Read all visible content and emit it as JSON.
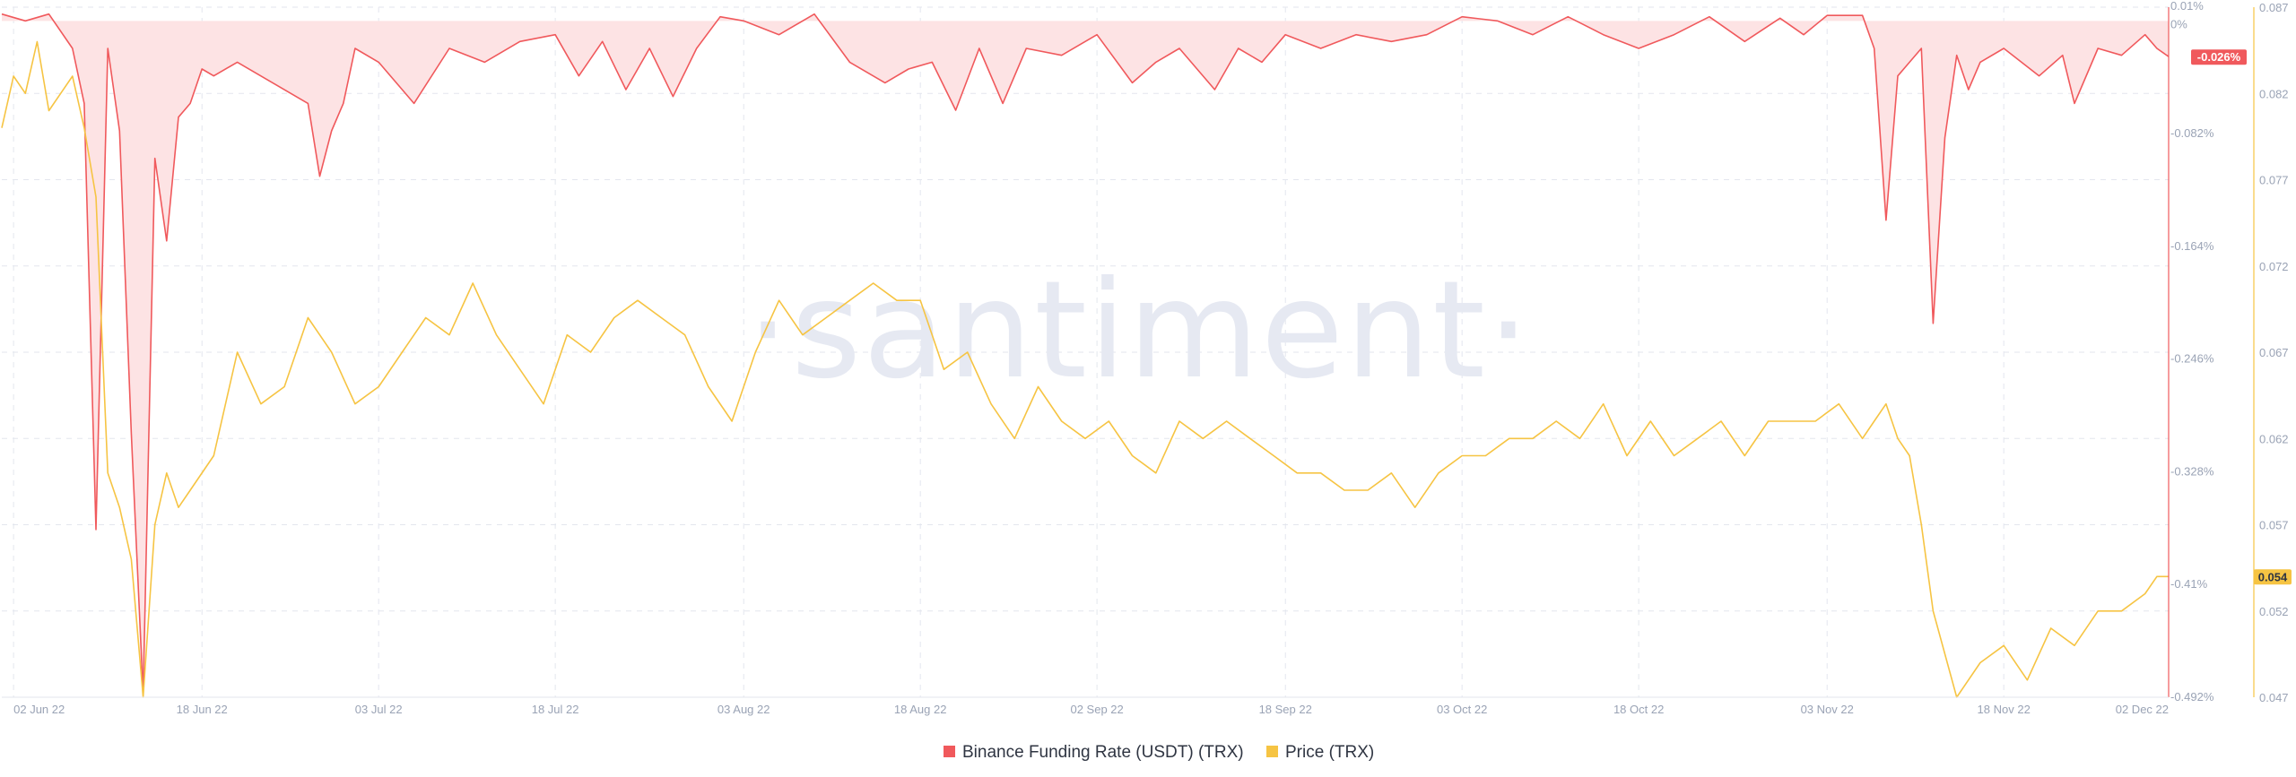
{
  "watermark": "·santiment·",
  "colors": {
    "funding": "#f0595c",
    "funding_fill": "#fde3e4",
    "price": "#f6c443",
    "grid": "#e3e6ee",
    "tick": "#9aa3b5"
  },
  "chart_data": {
    "type": "line",
    "x_range": [
      "2022-06-01",
      "2022-12-02"
    ],
    "x_ticks": [
      "02 Jun 22",
      "18 Jun 22",
      "03 Jul 22",
      "18 Jul 22",
      "03 Aug 22",
      "18 Aug 22",
      "02 Sep 22",
      "18 Sep 22",
      "03 Oct 22",
      "18 Oct 22",
      "03 Nov 22",
      "18 Nov 22",
      "02 Dec 22"
    ],
    "funding_axis": {
      "side": "right-inner",
      "range": [
        -0.492,
        0.01
      ],
      "ticks": [
        "0.01%",
        "0%",
        "-0.082%",
        "-0.164%",
        "-0.246%",
        "-0.328%",
        "-0.41%",
        "-0.492%"
      ],
      "tick_values": [
        0.01,
        0,
        -0.082,
        -0.164,
        -0.246,
        -0.328,
        -0.41,
        -0.492
      ]
    },
    "price_axis": {
      "side": "right-outer",
      "range": [
        0.047,
        0.087
      ],
      "ticks": [
        "0.087",
        "0.082",
        "0.077",
        "0.072",
        "0.067",
        "0.062",
        "0.057",
        "0.052",
        "0.047"
      ],
      "tick_values": [
        0.087,
        0.082,
        0.077,
        0.072,
        0.067,
        0.062,
        0.057,
        0.052,
        0.047
      ]
    },
    "last_values": {
      "funding": "-0.026%",
      "price": "0.054"
    },
    "legend_position": "bottom-center",
    "grid": true,
    "series": [
      {
        "name": "Binance Funding Rate (USDT) (TRX)",
        "axis": "funding",
        "x": [
          "2022-06-01",
          "2022-06-03",
          "2022-06-05",
          "2022-06-07",
          "2022-06-08",
          "2022-06-09",
          "2022-06-10",
          "2022-06-11",
          "2022-06-12",
          "2022-06-13",
          "2022-06-14",
          "2022-06-15",
          "2022-06-16",
          "2022-06-17",
          "2022-06-18",
          "2022-06-19",
          "2022-06-21",
          "2022-06-24",
          "2022-06-27",
          "2022-06-28",
          "2022-06-29",
          "2022-06-30",
          "2022-07-01",
          "2022-07-03",
          "2022-07-06",
          "2022-07-09",
          "2022-07-12",
          "2022-07-15",
          "2022-07-18",
          "2022-07-20",
          "2022-07-22",
          "2022-07-24",
          "2022-07-26",
          "2022-07-28",
          "2022-07-30",
          "2022-08-01",
          "2022-08-03",
          "2022-08-06",
          "2022-08-09",
          "2022-08-12",
          "2022-08-15",
          "2022-08-17",
          "2022-08-19",
          "2022-08-21",
          "2022-08-23",
          "2022-08-25",
          "2022-08-27",
          "2022-08-30",
          "2022-09-02",
          "2022-09-05",
          "2022-09-07",
          "2022-09-09",
          "2022-09-12",
          "2022-09-14",
          "2022-09-16",
          "2022-09-18",
          "2022-09-21",
          "2022-09-24",
          "2022-09-27",
          "2022-09-30",
          "2022-10-03",
          "2022-10-06",
          "2022-10-09",
          "2022-10-12",
          "2022-10-15",
          "2022-10-18",
          "2022-10-21",
          "2022-10-24",
          "2022-10-27",
          "2022-10-30",
          "2022-11-01",
          "2022-11-03",
          "2022-11-06",
          "2022-11-07",
          "2022-11-08",
          "2022-11-09",
          "2022-11-10",
          "2022-11-11",
          "2022-11-12",
          "2022-11-13",
          "2022-11-14",
          "2022-11-15",
          "2022-11-16",
          "2022-11-18",
          "2022-11-21",
          "2022-11-23",
          "2022-11-24",
          "2022-11-26",
          "2022-11-28",
          "2022-11-30",
          "2022-12-01",
          "2022-12-02"
        ],
        "values": [
          0.005,
          0.0,
          0.005,
          -0.02,
          -0.06,
          -0.37,
          -0.02,
          -0.08,
          -0.3,
          -0.49,
          -0.1,
          -0.16,
          -0.07,
          -0.06,
          -0.035,
          -0.04,
          -0.03,
          -0.045,
          -0.06,
          -0.113,
          -0.08,
          -0.06,
          -0.02,
          -0.03,
          -0.06,
          -0.02,
          -0.03,
          -0.015,
          -0.01,
          -0.04,
          -0.015,
          -0.05,
          -0.02,
          -0.055,
          -0.02,
          0.003,
          0.0,
          -0.01,
          0.005,
          -0.03,
          -0.045,
          -0.035,
          -0.03,
          -0.065,
          -0.02,
          -0.06,
          -0.02,
          -0.025,
          -0.01,
          -0.045,
          -0.03,
          -0.02,
          -0.05,
          -0.02,
          -0.03,
          -0.01,
          -0.02,
          -0.01,
          -0.015,
          -0.01,
          0.003,
          0.0,
          -0.01,
          0.003,
          -0.01,
          -0.02,
          -0.01,
          0.003,
          -0.015,
          0.002,
          -0.01,
          0.004,
          0.004,
          -0.02,
          -0.145,
          -0.04,
          -0.03,
          -0.02,
          -0.22,
          -0.085,
          -0.025,
          -0.05,
          -0.03,
          -0.02,
          -0.04,
          -0.025,
          -0.06,
          -0.02,
          -0.025,
          -0.01,
          -0.02,
          -0.026
        ]
      },
      {
        "name": "Price (TRX)",
        "axis": "price",
        "x": [
          "2022-06-01",
          "2022-06-02",
          "2022-06-03",
          "2022-06-04",
          "2022-06-05",
          "2022-06-06",
          "2022-06-07",
          "2022-06-08",
          "2022-06-09",
          "2022-06-10",
          "2022-06-11",
          "2022-06-12",
          "2022-06-13",
          "2022-06-14",
          "2022-06-15",
          "2022-06-16",
          "2022-06-17",
          "2022-06-19",
          "2022-06-21",
          "2022-06-23",
          "2022-06-25",
          "2022-06-27",
          "2022-06-29",
          "2022-07-01",
          "2022-07-03",
          "2022-07-05",
          "2022-07-07",
          "2022-07-09",
          "2022-07-11",
          "2022-07-13",
          "2022-07-15",
          "2022-07-17",
          "2022-07-19",
          "2022-07-21",
          "2022-07-23",
          "2022-07-25",
          "2022-07-27",
          "2022-07-29",
          "2022-07-31",
          "2022-08-02",
          "2022-08-04",
          "2022-08-06",
          "2022-08-08",
          "2022-08-10",
          "2022-08-12",
          "2022-08-14",
          "2022-08-16",
          "2022-08-18",
          "2022-08-20",
          "2022-08-22",
          "2022-08-24",
          "2022-08-26",
          "2022-08-28",
          "2022-08-30",
          "2022-09-01",
          "2022-09-03",
          "2022-09-05",
          "2022-09-07",
          "2022-09-09",
          "2022-09-11",
          "2022-09-13",
          "2022-09-15",
          "2022-09-17",
          "2022-09-19",
          "2022-09-21",
          "2022-09-23",
          "2022-09-25",
          "2022-09-27",
          "2022-09-29",
          "2022-10-01",
          "2022-10-03",
          "2022-10-05",
          "2022-10-07",
          "2022-10-09",
          "2022-10-11",
          "2022-10-13",
          "2022-10-15",
          "2022-10-17",
          "2022-10-19",
          "2022-10-21",
          "2022-10-23",
          "2022-10-25",
          "2022-10-27",
          "2022-10-29",
          "2022-10-31",
          "2022-11-02",
          "2022-11-04",
          "2022-11-06",
          "2022-11-07",
          "2022-11-08",
          "2022-11-09",
          "2022-11-10",
          "2022-11-11",
          "2022-11-12",
          "2022-11-14",
          "2022-11-16",
          "2022-11-18",
          "2022-11-20",
          "2022-11-22",
          "2022-11-24",
          "2022-11-26",
          "2022-11-28",
          "2022-11-30",
          "2022-12-01",
          "2022-12-02"
        ],
        "values": [
          0.08,
          0.083,
          0.082,
          0.085,
          0.081,
          0.082,
          0.083,
          0.08,
          0.076,
          0.06,
          0.058,
          0.055,
          0.047,
          0.057,
          0.06,
          0.058,
          0.059,
          0.061,
          0.067,
          0.064,
          0.065,
          0.069,
          0.067,
          0.064,
          0.065,
          0.067,
          0.069,
          0.068,
          0.071,
          0.068,
          0.066,
          0.064,
          0.068,
          0.067,
          0.069,
          0.07,
          0.069,
          0.068,
          0.065,
          0.063,
          0.067,
          0.07,
          0.068,
          0.069,
          0.07,
          0.071,
          0.07,
          0.07,
          0.066,
          0.067,
          0.064,
          0.062,
          0.065,
          0.063,
          0.062,
          0.063,
          0.061,
          0.06,
          0.063,
          0.062,
          0.063,
          0.062,
          0.061,
          0.06,
          0.06,
          0.059,
          0.059,
          0.06,
          0.058,
          0.06,
          0.061,
          0.061,
          0.062,
          0.062,
          0.063,
          0.062,
          0.064,
          0.061,
          0.063,
          0.061,
          0.062,
          0.063,
          0.061,
          0.063,
          0.063,
          0.063,
          0.064,
          0.062,
          0.063,
          0.064,
          0.062,
          0.061,
          0.057,
          0.052,
          0.047,
          0.049,
          0.05,
          0.048,
          0.051,
          0.05,
          0.052,
          0.052,
          0.053,
          0.054,
          0.054
        ]
      }
    ]
  }
}
